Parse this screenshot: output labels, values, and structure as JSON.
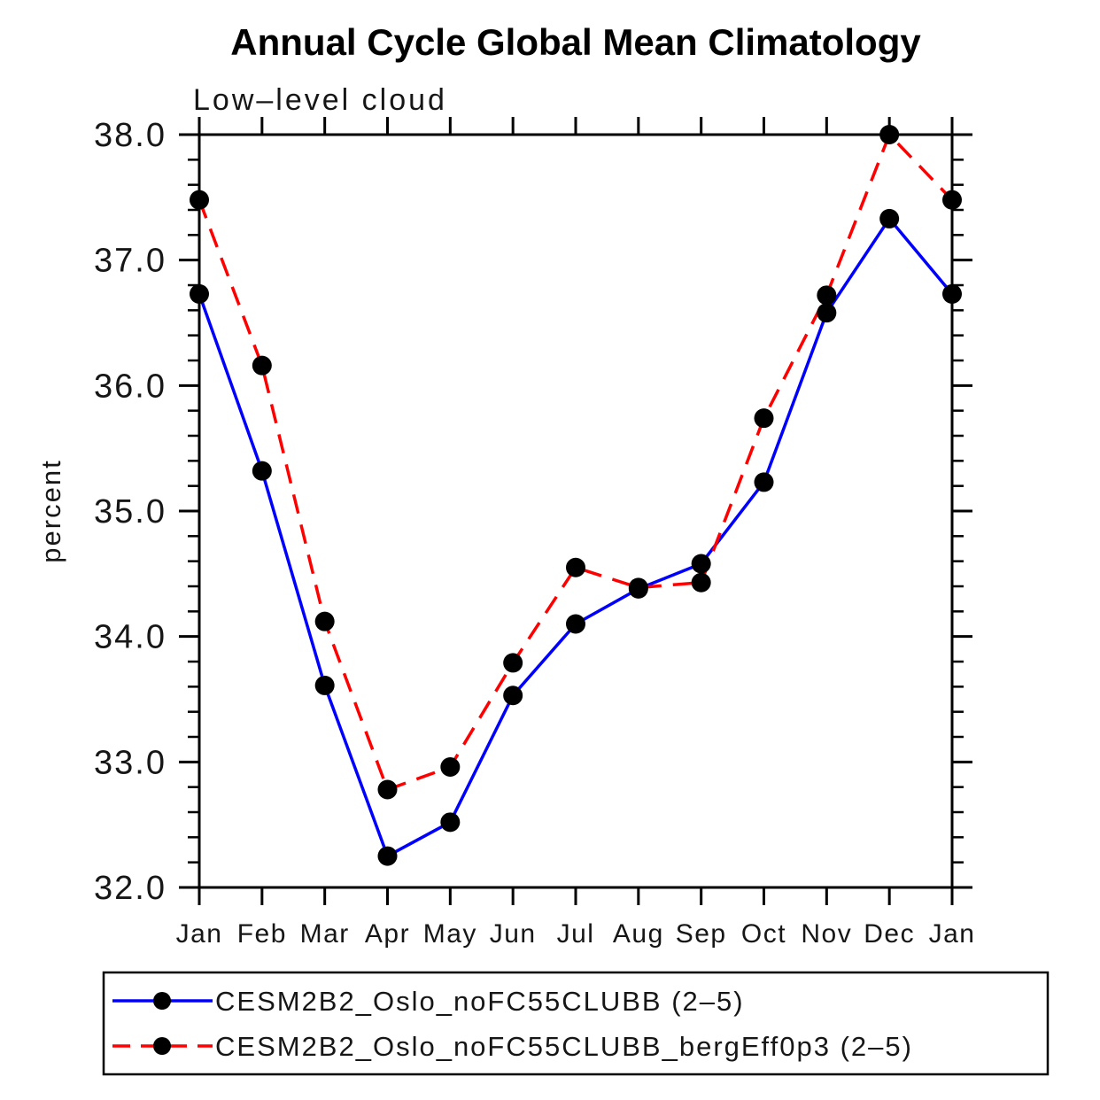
{
  "title": "Annual Cycle Global Mean Climatology",
  "subtitle": "Low–level cloud",
  "chart_data": {
    "type": "line",
    "x_categories": [
      "Jan",
      "Feb",
      "Mar",
      "Apr",
      "May",
      "Jun",
      "Jul",
      "Aug",
      "Sep",
      "Oct",
      "Nov",
      "Dec",
      "Jan"
    ],
    "series": [
      {
        "name": "CESM2B2_Oslo_noFC55CLUBB (2–5)",
        "color": "#0000ff",
        "line_style": "solid",
        "marker": "filled-circle",
        "marker_color": "#000000",
        "values": [
          36.73,
          35.32,
          33.61,
          32.25,
          32.52,
          33.53,
          34.1,
          34.38,
          34.58,
          35.23,
          36.58,
          37.33,
          36.73
        ]
      },
      {
        "name": "CESM2B2_Oslo_noFC55CLUBB_bergEff0p3 (2–5)",
        "color": "#ff0000",
        "line_style": "dashed",
        "marker": "filled-circle",
        "marker_color": "#000000",
        "values": [
          37.48,
          36.16,
          34.12,
          32.78,
          32.96,
          33.79,
          34.55,
          34.39,
          34.43,
          35.74,
          36.72,
          38.0,
          37.48
        ]
      }
    ],
    "xlabel": "",
    "ylabel": "percent",
    "ylim": [
      32.0,
      38.0
    ],
    "y_major_step": 1.0,
    "y_minor_step": 0.2,
    "y_tick_labels": [
      "38.0",
      "37.0",
      "36.0",
      "35.0",
      "34.0",
      "33.0",
      "32.0"
    ],
    "grid": false,
    "frame_color": "#000000",
    "legend_position": "bottom-left-box"
  }
}
